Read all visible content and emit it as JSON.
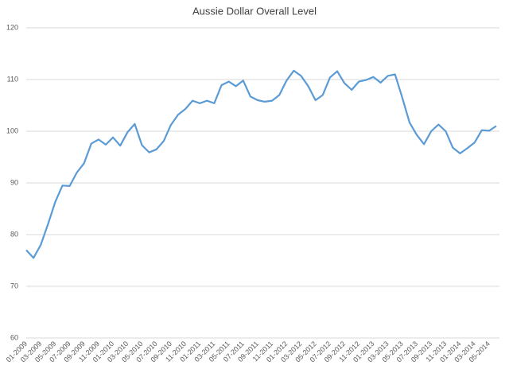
{
  "chart_data": {
    "type": "line",
    "title": "Aussie Dollar Overall Level",
    "categories": [
      "01-2009",
      null,
      "03-2009",
      null,
      "05-2009",
      null,
      "07-2009",
      null,
      "09-2009",
      null,
      "11-2009",
      null,
      "01-2010",
      null,
      "03-2010",
      null,
      "05-2010",
      null,
      "07-2010",
      null,
      "09-2010",
      null,
      "11-2010",
      null,
      "01-2011",
      null,
      "03-2011",
      null,
      "05-2011",
      null,
      "07-2011",
      null,
      "09-2011",
      null,
      "11-2011",
      null,
      "01-2012",
      null,
      "03-2012",
      null,
      "05-2012",
      null,
      "07-2012",
      null,
      "09-2012",
      null,
      "11-2012",
      null,
      "01-2013",
      null,
      "03-2013",
      null,
      "05-2013",
      null,
      "07-2013",
      null,
      "09-2013",
      null,
      "11-2013",
      null,
      "01-2014",
      null,
      "03-2014",
      null,
      "05-2014",
      null
    ],
    "series": [
      {
        "color": "#5b9bd5",
        "values": [
          77,
          75.5,
          78,
          82,
          86.3,
          89.5,
          89.4,
          92,
          93.8,
          97.6,
          98.4,
          97.4,
          98.8,
          97.2,
          99.8,
          101.4,
          97.3,
          95.9,
          96.5,
          98.1,
          101.2,
          103.2,
          104.3,
          105.9,
          105.4,
          105.9,
          105.4,
          108.9,
          109.6,
          108.7,
          109.8,
          106.7,
          106,
          105.7,
          105.9,
          107,
          109.8,
          111.7,
          110.7,
          108.7,
          106,
          107,
          110.4,
          111.6,
          109.3,
          108,
          109.6,
          109.9,
          110.5,
          109.4,
          110.7,
          111,
          106.5,
          101.7,
          99.3,
          97.5,
          100,
          101.3,
          100,
          96.8,
          95.7,
          96.7,
          97.8,
          100.2,
          100.1,
          101
        ]
      }
    ],
    "ylim": [
      60,
      120
    ],
    "yticks": [
      60,
      70,
      80,
      90,
      100,
      110,
      120
    ],
    "grid": true
  }
}
